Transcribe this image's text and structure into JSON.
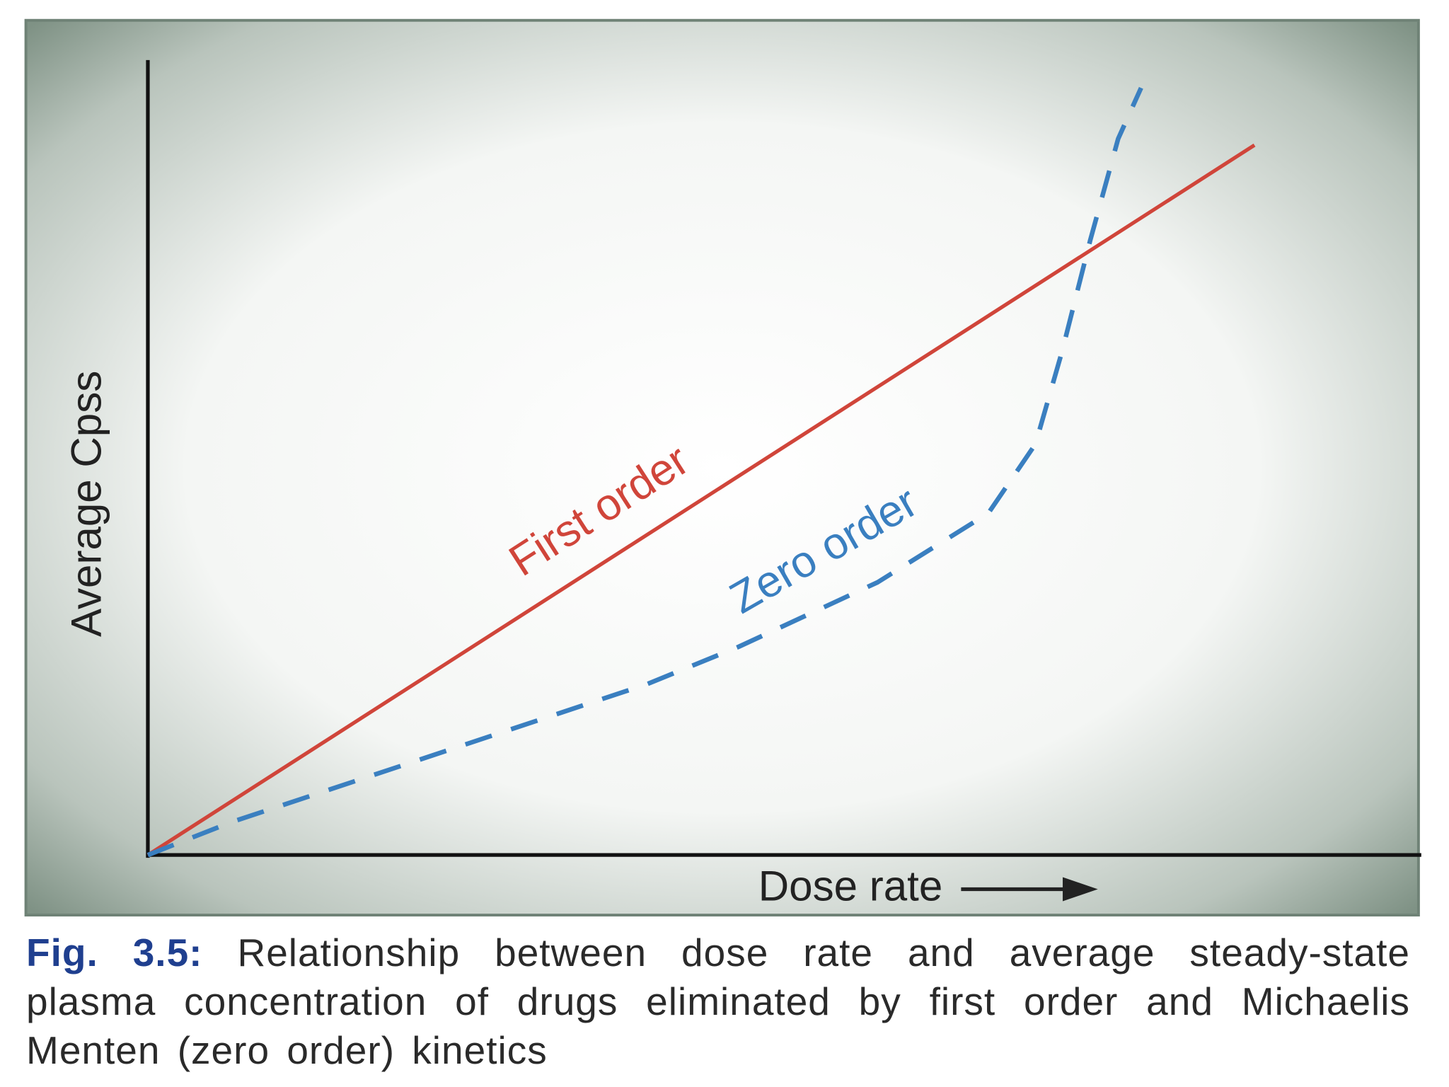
{
  "chart_data": {
    "type": "line",
    "x_label": "Dose rate",
    "y_label": "Average Cpss",
    "caption_label": "Fig. 3.5:",
    "caption": "Relationship between dose rate and average steady-state plasma concentration of drugs eliminated by first order and Michaelis Menten (zero order) kinetics",
    "xlim": [
      0,
      100
    ],
    "ylim": [
      0,
      100
    ],
    "series": [
      {
        "name": "First order",
        "color": "#d0453a",
        "dashed": false,
        "x": [
          0,
          86.9
        ],
        "values": [
          0,
          89.3
        ]
      },
      {
        "name": "Zero order",
        "color": "#3a7fc0",
        "dashed": true,
        "x": [
          0,
          6.5,
          17.4,
          28.3,
          39.2,
          46.4,
          57.3,
          66.0,
          69.7,
          71.8,
          74.0,
          76.2,
          78.0
        ],
        "values": [
          0,
          4.1,
          9.9,
          15.7,
          21.5,
          26.2,
          34.3,
          43.0,
          51.7,
          63.4,
          77.3,
          90.1,
          96.5
        ]
      }
    ]
  }
}
